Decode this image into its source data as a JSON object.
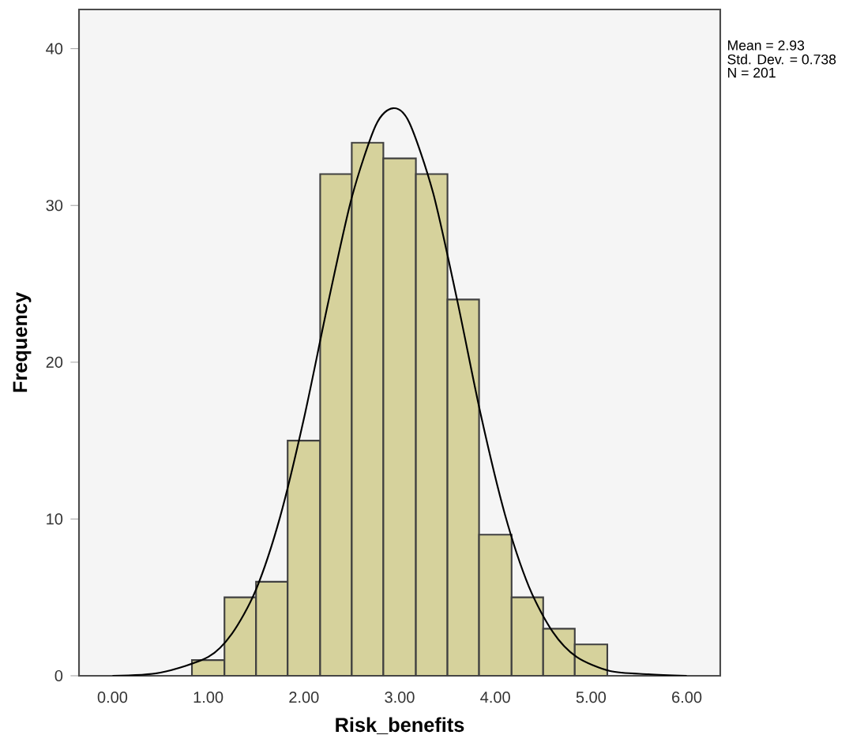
{
  "chart_data": {
    "type": "histogram",
    "xlabel": "Risk_benefits",
    "ylabel": "Frequency",
    "bins": [
      0.83,
      1.17,
      1.5,
      1.83,
      2.17,
      2.5,
      2.83,
      3.17,
      3.5,
      3.83,
      4.17,
      4.5,
      4.83,
      5.17
    ],
    "values": [
      1,
      5,
      6,
      15,
      32,
      34,
      33,
      32,
      24,
      9,
      5,
      3,
      2
    ],
    "color": "#d6d29c",
    "series": [
      {
        "type": "line",
        "color": "#000000",
        "x": [
          0,
          0.5,
          1.0,
          1.25,
          1.5,
          1.75,
          2.0,
          2.25,
          2.5,
          2.75,
          2.93,
          3.1,
          3.35,
          3.6,
          3.85,
          4.1,
          4.35,
          4.6,
          4.85,
          5.2,
          5.6,
          6.0
        ],
        "values": [
          0.0,
          0.2,
          1.2,
          2.7,
          5.5,
          10.1,
          16.4,
          23.7,
          30.5,
          35.1,
          36.2,
          35.3,
          30.8,
          24.0,
          16.6,
          10.3,
          5.7,
          2.8,
          1.2,
          0.3,
          0.1,
          0.0
        ]
      }
    ],
    "xlim": [
      -0.35,
      6.35
    ],
    "ylim": [
      0,
      42.5
    ],
    "xticks": [
      {
        "value": 0,
        "label": "0.00"
      },
      {
        "value": 1,
        "label": "1.00"
      },
      {
        "value": 2,
        "label": "2.00"
      },
      {
        "value": 3,
        "label": "3.00"
      },
      {
        "value": 4,
        "label": "4.00"
      },
      {
        "value": 5,
        "label": "5.00"
      },
      {
        "value": 6,
        "label": "6.00"
      }
    ],
    "yticks": [
      0,
      10,
      20,
      30,
      40
    ],
    "annotations": [
      "Mean = 2.93",
      "Std. Dev. = 0.738",
      "N = 201"
    ]
  }
}
